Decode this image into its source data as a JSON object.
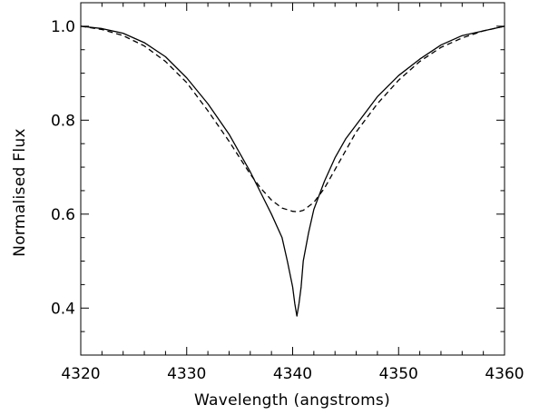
{
  "chart_data": {
    "type": "line",
    "title": "",
    "xlabel": "Wavelength (angstroms)",
    "ylabel": "Normalised Flux",
    "xlim": [
      4320,
      4360
    ],
    "ylim": [
      0.3,
      1.05
    ],
    "xticks": [
      4320,
      4330,
      4340,
      4350,
      4360
    ],
    "xtick_labels": [
      "4320",
      "4330",
      "4340",
      "4350",
      "4360"
    ],
    "yticks": [
      0.4,
      0.6,
      0.8,
      1.0
    ],
    "ytick_labels": [
      "0.4",
      "0.6",
      "0.8",
      "1.0"
    ],
    "x_minor_step": 2,
    "y_minor_step": 0.05,
    "grid": false,
    "legend": "none",
    "series": [
      {
        "line_style": "solid",
        "color": "#000000",
        "x": [
          4320,
          4322,
          4324,
          4326,
          4328,
          4330,
          4332,
          4334,
          4335,
          4336,
          4337,
          4338,
          4339,
          4339.5,
          4340,
          4340.2,
          4340.4,
          4340.6,
          4340.8,
          4341,
          4341.5,
          4342,
          4343,
          4344,
          4345,
          4346,
          4348,
          4350,
          4352,
          4354,
          4356,
          4358,
          4360
        ],
        "y": [
          1.0,
          0.995,
          0.985,
          0.965,
          0.935,
          0.89,
          0.835,
          0.77,
          0.73,
          0.69,
          0.645,
          0.6,
          0.55,
          0.5,
          0.445,
          0.41,
          0.383,
          0.41,
          0.445,
          0.5,
          0.56,
          0.61,
          0.67,
          0.72,
          0.76,
          0.79,
          0.85,
          0.895,
          0.93,
          0.96,
          0.98,
          0.99,
          1.0
        ]
      },
      {
        "line_style": "dashed",
        "color": "#000000",
        "x": [
          4320,
          4322,
          4324,
          4326,
          4328,
          4330,
          4332,
          4334,
          4335,
          4336,
          4337,
          4338,
          4339,
          4340,
          4340.5,
          4341,
          4342,
          4343,
          4344,
          4345,
          4346,
          4348,
          4350,
          4352,
          4354,
          4356,
          4358,
          4360
        ],
        "y": [
          1.0,
          0.993,
          0.98,
          0.958,
          0.925,
          0.88,
          0.82,
          0.755,
          0.72,
          0.685,
          0.655,
          0.63,
          0.613,
          0.606,
          0.605,
          0.608,
          0.625,
          0.655,
          0.695,
          0.735,
          0.775,
          0.835,
          0.885,
          0.925,
          0.955,
          0.975,
          0.99,
          1.0
        ]
      }
    ]
  }
}
